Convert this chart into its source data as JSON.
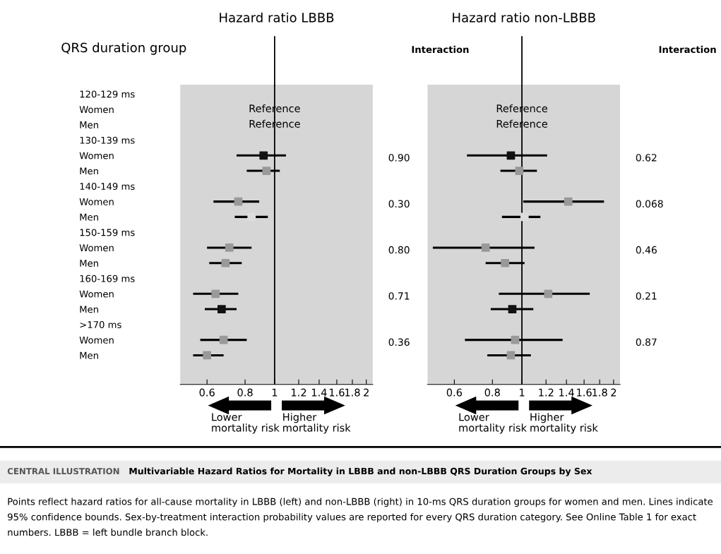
{
  "chart_data": [
    {
      "type": "scatter",
      "orientation": "horizontal",
      "title": "Hazard ratio LBBB",
      "ylabel": "QRS duration group",
      "y2label": "Interaction",
      "categories": [
        "120-129 ms",
        "Women",
        "Men",
        "130-139 ms",
        "Women",
        "Men",
        "140-149 ms",
        "Women",
        "Men",
        "150-159 ms",
        "Women",
        "Men",
        "160-169 ms",
        "Women",
        "Men",
        ">170 ms",
        "Women",
        "Men"
      ],
      "values": [
        null,
        null,
        null,
        null,
        0.92,
        0.94,
        null,
        0.76,
        0.84,
        null,
        0.71,
        0.69,
        null,
        0.64,
        0.67,
        null,
        0.68,
        0.6
      ],
      "errors": [
        null,
        null,
        null,
        null,
        [
          0.75,
          1.09
        ],
        [
          0.81,
          1.04
        ],
        null,
        [
          0.63,
          0.89
        ],
        [
          0.74,
          0.95
        ],
        null,
        [
          0.6,
          0.84
        ],
        [
          0.61,
          0.78
        ],
        null,
        [
          0.54,
          0.76
        ],
        [
          0.59,
          0.75
        ],
        null,
        [
          0.57,
          0.81
        ],
        [
          0.54,
          0.68
        ]
      ],
      "colors": [
        "#999999",
        "#999999",
        "#999999",
        "#999999",
        "#111111",
        "#999999",
        "#999999",
        "#999999",
        "#dddddd",
        "#999999",
        "#999999",
        "#999999",
        "#999999",
        "#999999",
        "#111111",
        "#999999",
        "#999999",
        "#999999"
      ],
      "marker": "square",
      "log": "x",
      "xlim": [
        0.49,
        2.1
      ],
      "xticks": [
        0.6,
        0.8,
        1,
        1.2,
        1.4,
        1.6,
        1.8,
        2
      ],
      "grid": false,
      "ref_lines": [
        {
          "axis": "x",
          "value": 1,
          "color": "#000000"
        }
      ],
      "annotations": [
        "Reference",
        "Reference",
        "0.90",
        "0.30",
        "0.80",
        "0.71",
        "0.36",
        "Lower\nmortality risk",
        "Higher\nmortality risk"
      ]
    },
    {
      "type": "scatter",
      "orientation": "horizontal",
      "title": "Hazard ratio non-LBBB",
      "y2label": "Interaction",
      "tick_labels": "x",
      "values": [
        null,
        null,
        null,
        null,
        0.92,
        0.98,
        null,
        1.42,
        1.02,
        null,
        0.76,
        0.88,
        null,
        1.22,
        0.93,
        null,
        0.95,
        0.92
      ],
      "errors": [
        null,
        null,
        null,
        null,
        [
          0.66,
          1.21
        ],
        [
          0.85,
          1.12
        ],
        null,
        [
          1.01,
          1.86
        ],
        [
          0.86,
          1.15
        ],
        null,
        [
          0.51,
          1.1
        ],
        [
          0.76,
          1.02
        ],
        null,
        [
          0.84,
          1.67
        ],
        [
          0.79,
          1.09
        ],
        null,
        [
          0.65,
          1.36
        ],
        [
          0.77,
          1.07
        ]
      ],
      "colors": [
        "#999999",
        "#999999",
        "#999999",
        "#999999",
        "#111111",
        "#999999",
        "#999999",
        "#999999",
        "#dddddd",
        "#999999",
        "#999999",
        "#999999",
        "#999999",
        "#999999",
        "#111111",
        "#999999",
        "#999999",
        "#999999"
      ],
      "marker": "square",
      "log": "x",
      "xlim": [
        0.49,
        2.1
      ],
      "xticks": [
        0.6,
        0.8,
        1,
        1.2,
        1.4,
        1.6,
        1.8,
        2
      ],
      "grid": false,
      "ref_lines": [
        {
          "axis": "x",
          "value": 1,
          "color": "#000000"
        }
      ],
      "annotations": [
        "Reference",
        "Reference",
        "0.62",
        "0.068",
        "0.46",
        "0.21",
        "0.87",
        "Lower\nmortality risk",
        "Higher\nmortality risk"
      ]
    },
    {
      "type": "other",
      "subtitle": "CENTRAL ILLUSTRATION",
      "title": "Multivariable Hazard Ratios for Mortality in LBBB and non-LBBB QRS Duration Groups by Sex",
      "annotations": [
        "Points reflect hazard ratios for all-cause mortality in LBBB (left) and non-LBBB (right) in 10-ms QRS duration groups for women and men. Lines indicate 95% confidence bounds. Sex-by-treatment interaction probability values are reported for every QRS duration category. See Online Table 1 for exact numbers. LBBB = left bundle branch block."
      ]
    }
  ]
}
